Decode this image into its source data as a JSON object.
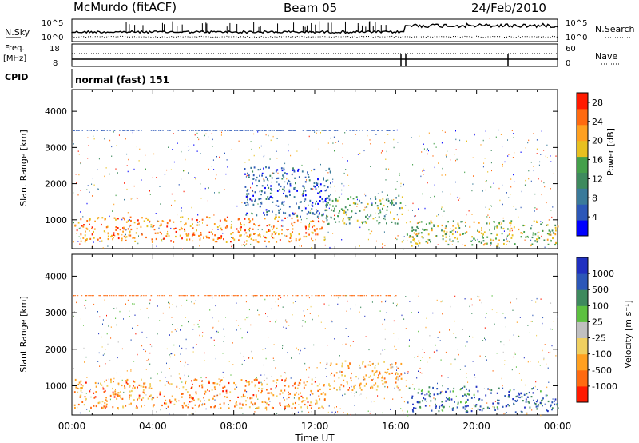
{
  "header": {
    "station": "McMurdo (fitACF)",
    "beam": "Beam 05",
    "date": "24/Feb/2010"
  },
  "aux_panels": {
    "nsky_label": "N.Sky",
    "nsearch_label": "N.Search",
    "freq_label": "Freq.",
    "freq_unit": "[MHz]",
    "nave_label": "Nave",
    "cpid_label": "CPID",
    "cpid_value": "normal (fast) 151",
    "noise_ticks": [
      "10^5",
      "10^0"
    ],
    "freq_ticks": [
      "18",
      "8"
    ],
    "nave_ticks": [
      "60",
      "0"
    ]
  },
  "colors": {
    "power_scale": [
      "#0000ff",
      "#2c57b8",
      "#3a7a9a",
      "#3e8a5e",
      "#44a04a",
      "#e8c020",
      "#ffa020",
      "#ff6a10",
      "#ff1a00"
    ],
    "velocity_scale": [
      "#2030c0",
      "#2c57b8",
      "#3e8a5e",
      "#5cc040",
      "#c0c0c0",
      "#f0d060",
      "#ffa020",
      "#ff6a10",
      "#ff1a00"
    ]
  },
  "chart_data": [
    {
      "type": "heatmap",
      "name": "power",
      "title": "",
      "xlabel": "Time UT",
      "ylabel": "Slant Range [km]",
      "colorbar_label": "Power [dB]",
      "x_ticks": [
        "00:00",
        "04:00",
        "08:00",
        "12:00",
        "16:00",
        "20:00",
        "00:00"
      ],
      "y_ticks": [
        1000,
        2000,
        3000,
        4000
      ],
      "ylim": [
        200,
        4600
      ],
      "colorbar_ticks": [
        4,
        8,
        12,
        16,
        20,
        24,
        28
      ],
      "clim": [
        0,
        30
      ],
      "regions": [
        {
          "t0": 0.1,
          "t1": 12.5,
          "r0": 400,
          "r1": 1100,
          "level": 0.75
        },
        {
          "t0": 12.5,
          "t1": 16.3,
          "r0": 900,
          "r1": 1700,
          "level": 0.45
        },
        {
          "t0": 8.5,
          "t1": 12.8,
          "r0": 1100,
          "r1": 2500,
          "level": 0.2
        },
        {
          "t0": 16.5,
          "t1": 24.0,
          "r0": 300,
          "r1": 1000,
          "level": 0.55
        }
      ]
    },
    {
      "type": "heatmap",
      "name": "velocity",
      "title": "",
      "xlabel": "Time UT",
      "ylabel": "Slant Range [km]",
      "colorbar_label": "Velocity [m s⁻¹]",
      "x_ticks": [
        "00:00",
        "04:00",
        "08:00",
        "12:00",
        "16:00",
        "20:00",
        "00:00"
      ],
      "y_ticks": [
        1000,
        2000,
        3000,
        4000
      ],
      "ylim": [
        200,
        4600
      ],
      "colorbar_ticks": [
        "1000",
        "500",
        "100",
        "25",
        "-25",
        "-100",
        "-500",
        "-1000"
      ],
      "regions": [
        {
          "t0": 0.1,
          "t1": 12.5,
          "r0": 400,
          "r1": 1200,
          "level": 0.25
        },
        {
          "t0": 12.5,
          "t1": 16.3,
          "r0": 900,
          "r1": 1700,
          "level": 0.3
        },
        {
          "t0": 16.5,
          "t1": 24.0,
          "r0": 300,
          "r1": 1000,
          "level": 0.8
        }
      ]
    }
  ]
}
